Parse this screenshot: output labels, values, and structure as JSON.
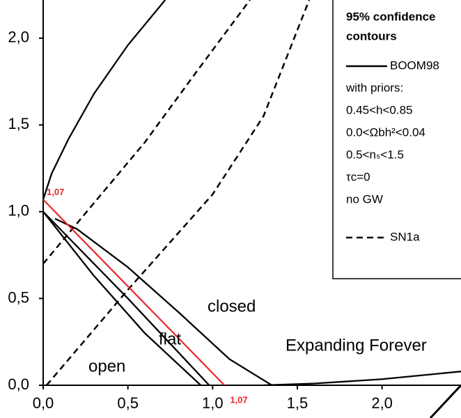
{
  "chart_data": {
    "type": "line",
    "xlim": [
      0,
      2.47
    ],
    "ylim": [
      0,
      2.22
    ],
    "xticks": [
      {
        "value": 0,
        "label": "0,0"
      },
      {
        "value": 0.5,
        "label": "0,5"
      },
      {
        "value": 1,
        "label": "1,0"
      },
      {
        "value": 1.5,
        "label": "1,5"
      },
      {
        "value": 2,
        "label": "2,0"
      }
    ],
    "yticks": [
      {
        "value": 0,
        "label": "0,0"
      },
      {
        "value": 0.5,
        "label": "0,5"
      },
      {
        "value": 1,
        "label": "1,0"
      },
      {
        "value": 1.5,
        "label": "1,5"
      },
      {
        "value": 2,
        "label": "2,0"
      }
    ],
    "series": [
      {
        "name": "BOOM98",
        "color": "#000000",
        "dash": false,
        "x": [
          0,
          0.05,
          0.15,
          0.3,
          0.5,
          0.72
        ],
        "values": [
          1.07,
          1.22,
          1.42,
          1.68,
          1.96,
          2.22
        ]
      },
      {
        "color": "#000000",
        "dash": false,
        "x": [
          0.07,
          0.2,
          0.5,
          0.8,
          1.1,
          1.35
        ],
        "values": [
          0.96,
          0.9,
          0.68,
          0.42,
          0.15,
          0.0
        ]
      },
      {
        "color": "#000000",
        "dash": false,
        "x": [
          0,
          0.3,
          0.6,
          0.93
        ],
        "values": [
          1.0,
          0.63,
          0.3,
          0.0
        ]
      },
      {
        "color": "#000000",
        "dash": false,
        "x": [
          0,
          0.5,
          0.98
        ],
        "values": [
          1.0,
          0.5,
          0.0
        ]
      },
      {
        "color": "#000000",
        "dash": false,
        "x": [
          1.3,
          1.6,
          2.0,
          2.47
        ],
        "values": [
          0.0,
          0.01,
          0.035,
          0.08
        ]
      },
      {
        "name": "SN1a",
        "color": "#000000",
        "dash": true,
        "x": [
          0,
          0.3,
          0.6,
          0.9,
          1.22
        ],
        "values": [
          0.7,
          1.05,
          1.4,
          1.8,
          2.22
        ]
      },
      {
        "color": "#000000",
        "dash": true,
        "x": [
          0.02,
          0.5,
          1.0,
          1.3,
          1.57
        ],
        "values": [
          0.0,
          0.55,
          1.1,
          1.55,
          2.22
        ]
      },
      {
        "color": "#e8262b",
        "dash": false,
        "x": [
          0,
          1.07
        ],
        "values": [
          1.07,
          0.0
        ]
      }
    ],
    "markers": [
      {
        "x": 0,
        "y": 1.07,
        "label": "1,07"
      },
      {
        "x": 1.07,
        "y": 0,
        "label": "1,07"
      }
    ],
    "annotations": [
      "closed",
      "flat",
      "open",
      "Expanding Forever"
    ],
    "legend_title": [
      "95% confidence",
      "contours"
    ],
    "legend_notes": [
      "with priors:",
      "0.45<h<0.85",
      "0.0<Ωbh²<0.04",
      "0.5<nₛ<1.5",
      "τc=0",
      "no GW"
    ]
  }
}
